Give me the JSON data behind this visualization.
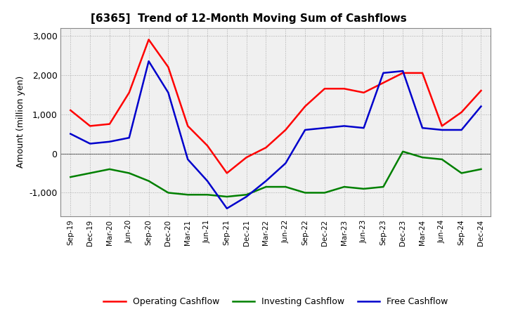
{
  "title": "[6365]  Trend of 12-Month Moving Sum of Cashflows",
  "ylabel": "Amount (million yen)",
  "ylim": [
    -1600,
    3200
  ],
  "yticks": [
    -1000,
    0,
    1000,
    2000,
    3000
  ],
  "x_labels": [
    "Sep-19",
    "Dec-19",
    "Mar-20",
    "Jun-20",
    "Sep-20",
    "Dec-20",
    "Mar-21",
    "Jun-21",
    "Sep-21",
    "Dec-21",
    "Mar-22",
    "Jun-22",
    "Sep-22",
    "Dec-22",
    "Mar-23",
    "Jun-23",
    "Sep-23",
    "Dec-23",
    "Mar-24",
    "Jun-24",
    "Sep-24",
    "Dec-24"
  ],
  "operating": [
    1100,
    700,
    750,
    1550,
    2900,
    2200,
    700,
    200,
    -500,
    -100,
    150,
    600,
    1200,
    1650,
    1650,
    1550,
    1800,
    2050,
    2050,
    700,
    1050,
    1600
  ],
  "investing": [
    -600,
    -500,
    -400,
    -500,
    -700,
    -1000,
    -1050,
    -1050,
    -1100,
    -1050,
    -850,
    -850,
    -1000,
    -1000,
    -850,
    -900,
    -850,
    50,
    -100,
    -150,
    -500,
    -400
  ],
  "free": [
    500,
    250,
    300,
    400,
    2350,
    1550,
    -150,
    -700,
    -1400,
    -1100,
    -700,
    -250,
    600,
    650,
    700,
    650,
    2050,
    2100,
    650,
    600,
    600,
    1200
  ],
  "operating_color": "#ff0000",
  "investing_color": "#008000",
  "free_color": "#0000cc",
  "legend_labels": [
    "Operating Cashflow",
    "Investing Cashflow",
    "Free Cashflow"
  ],
  "background_color": "#ffffff",
  "plot_bg_color": "#f0f0f0",
  "grid_color": "#aaaaaa"
}
